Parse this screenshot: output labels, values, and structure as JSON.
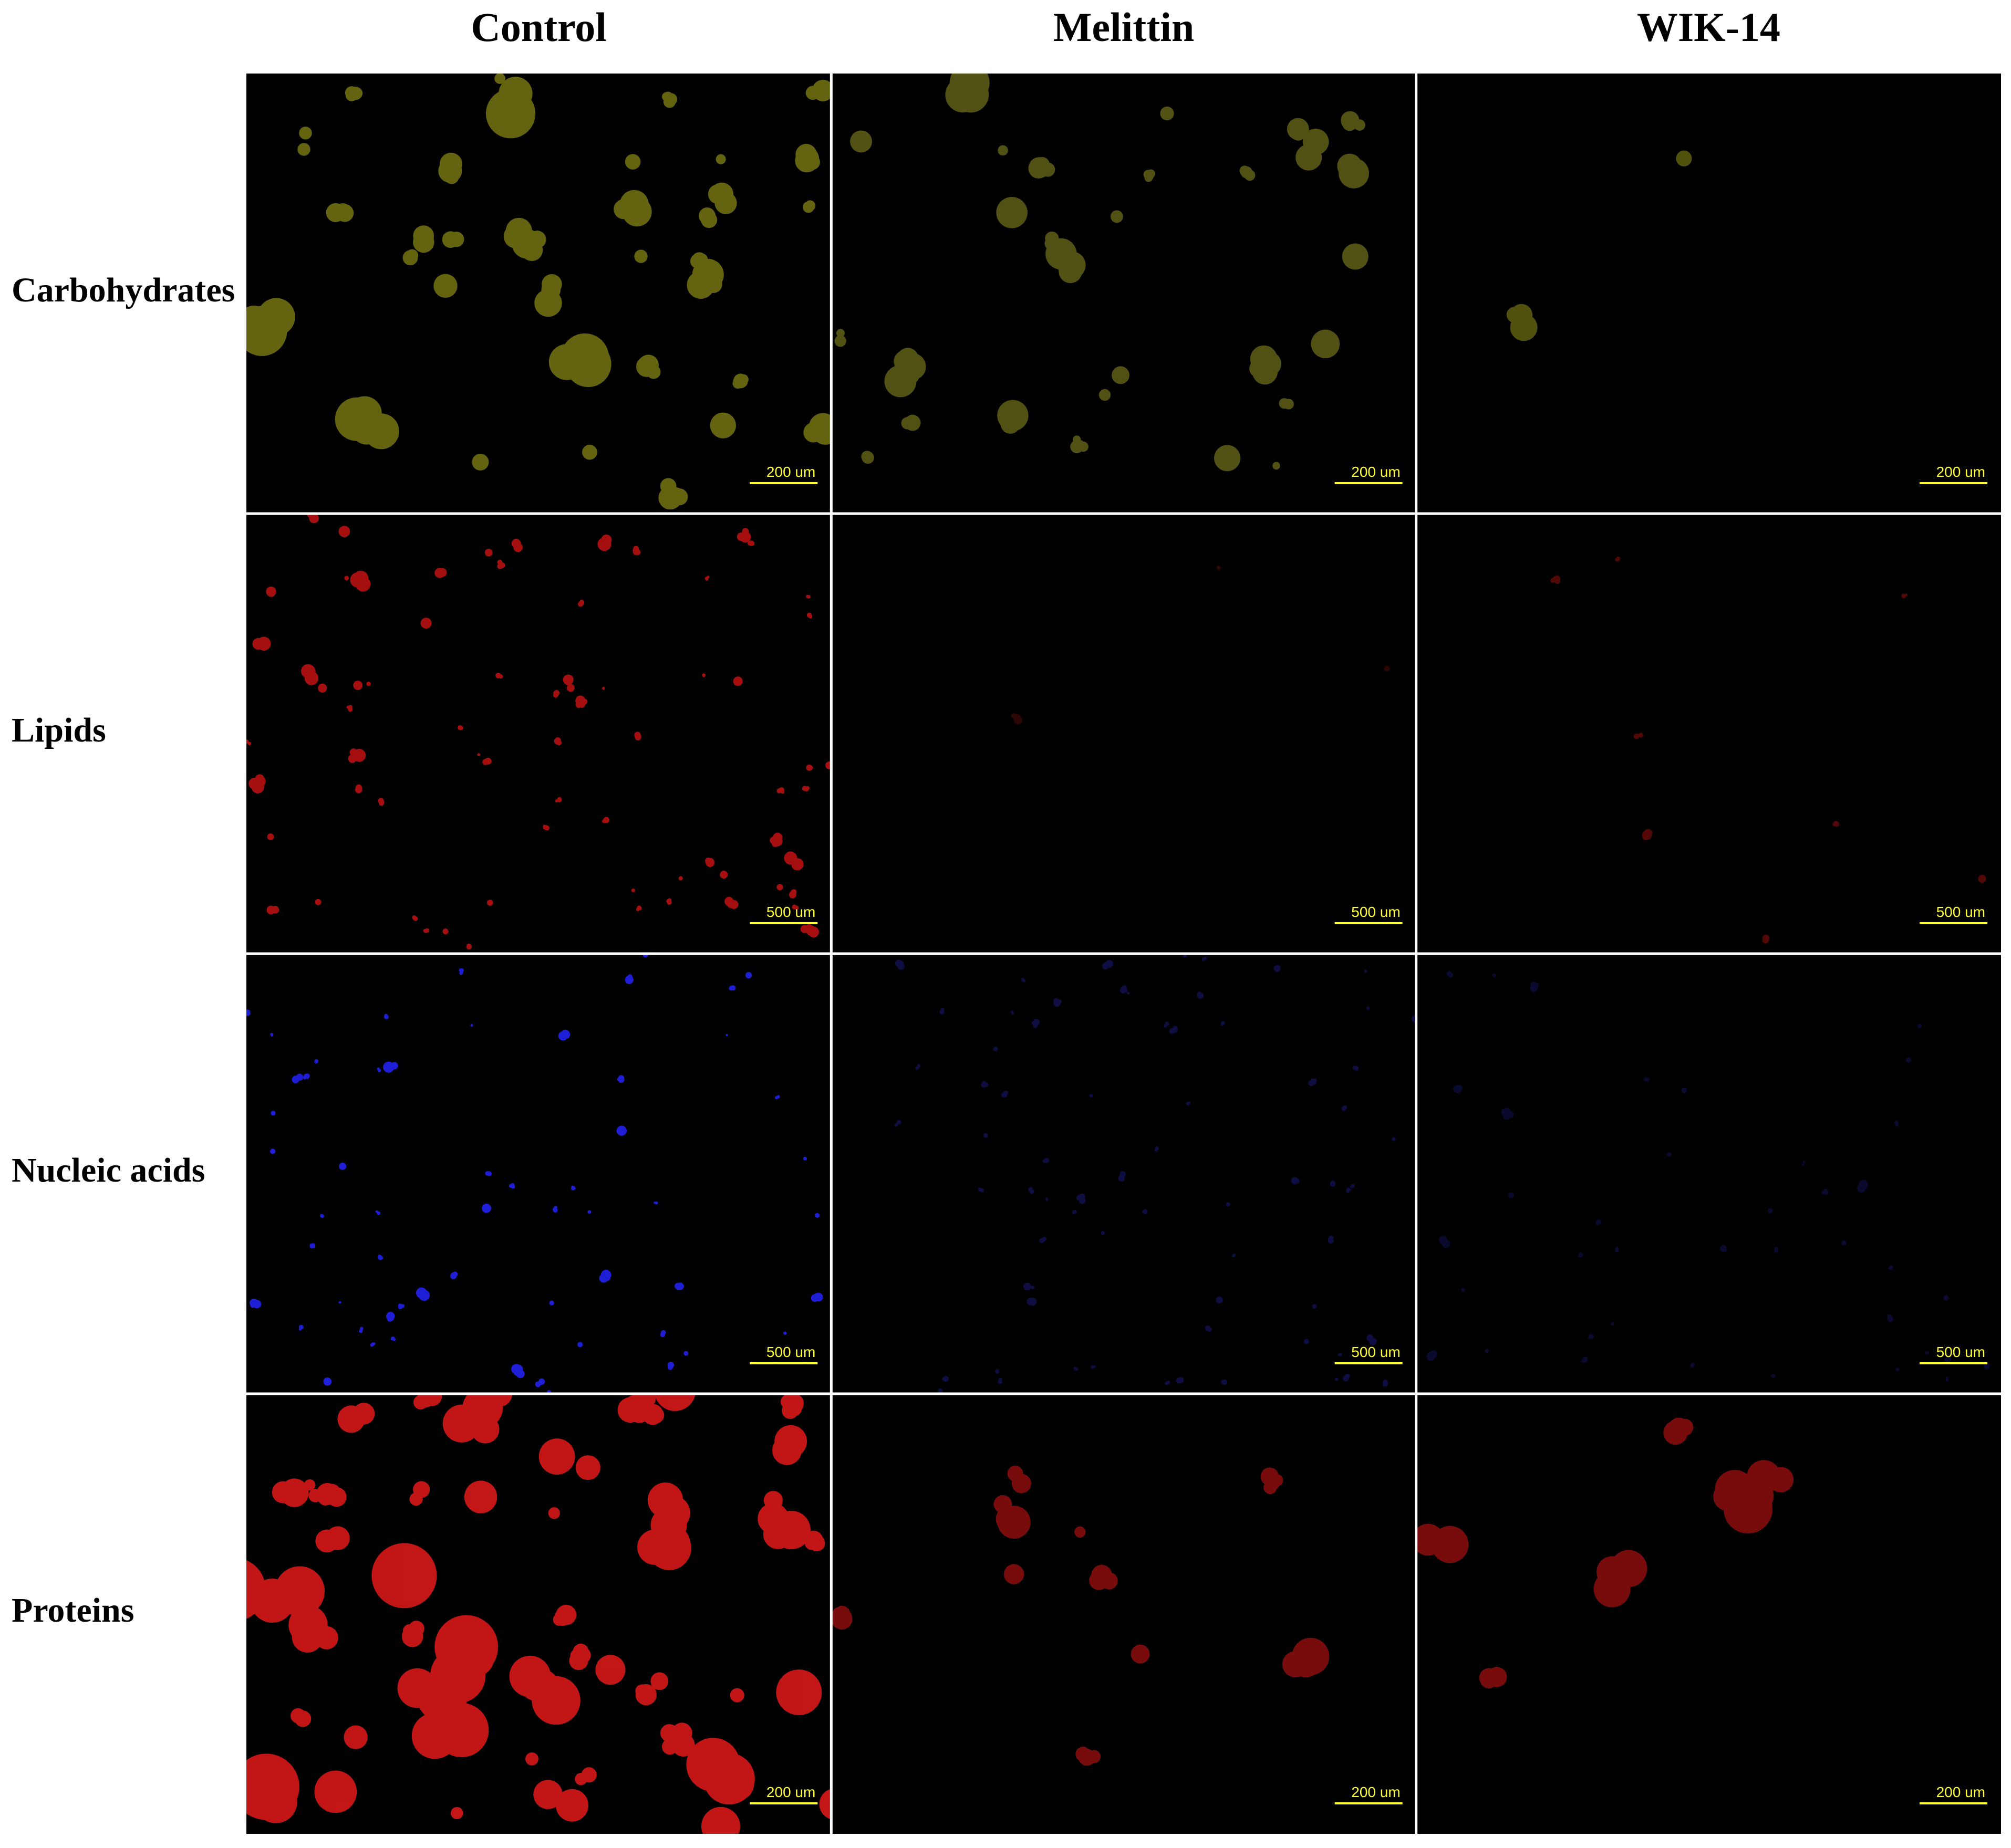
{
  "columns": [
    "Control",
    "Melittin",
    "WIK-14"
  ],
  "rows": [
    {
      "label": "Carbohydrates",
      "scale_bars": [
        "200 um",
        "200 um",
        "200 um"
      ]
    },
    {
      "label": "Lipids",
      "scale_bars": [
        "500 um",
        "500 um",
        "500 um"
      ]
    },
    {
      "label": "Nucleic acids",
      "scale_bars": [
        "500 um",
        "500 um",
        "500 um"
      ]
    },
    {
      "label": "Proteins",
      "scale_bars": [
        "200 um",
        "200 um",
        "200 um"
      ]
    }
  ]
}
